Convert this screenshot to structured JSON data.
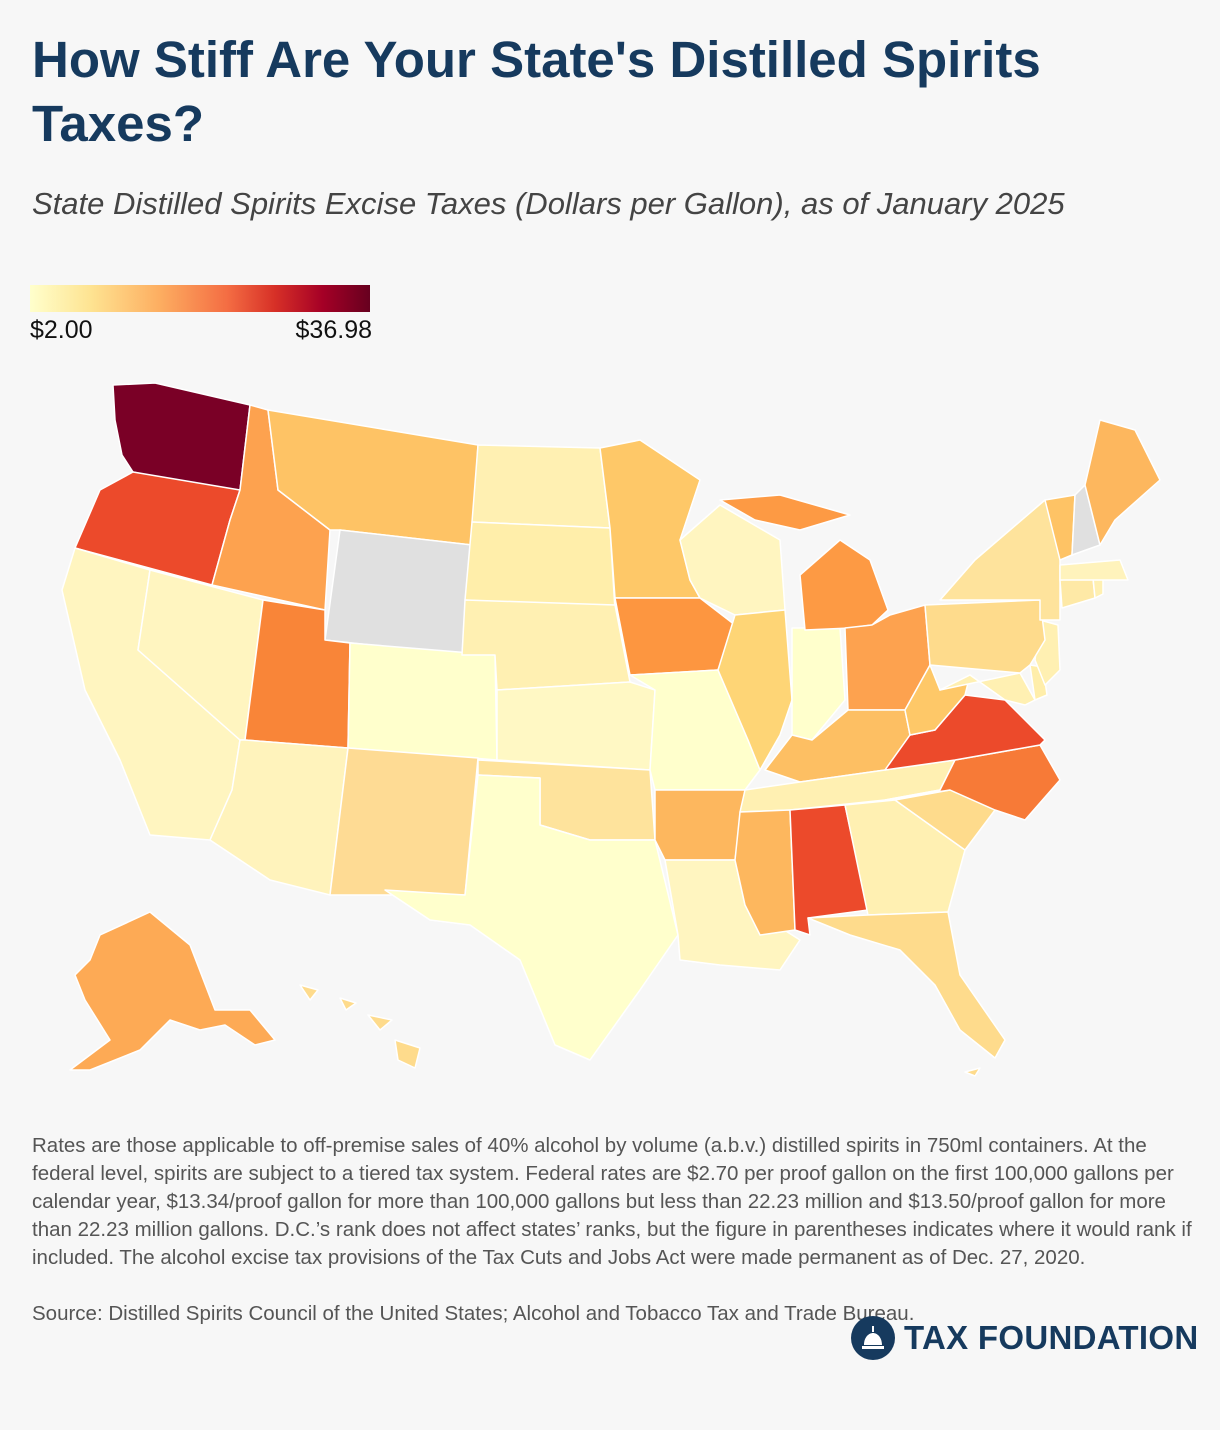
{
  "header": {
    "title": "How Stiff Are Your State's Distilled Spirits Taxes?",
    "subtitle": "State Distilled Spirits Excise Taxes (Dollars per Gallon), as of January 2025"
  },
  "legend": {
    "min_label": "$2.00",
    "max_label": "$36.98",
    "colors": [
      "#ffffcc",
      "#fee391",
      "#fdae61",
      "#f46d43",
      "#d73027",
      "#a50026",
      "#67001f"
    ],
    "no_data_color": "#e0e0e0"
  },
  "chart_data": {
    "type": "choropleth",
    "title": "How Stiff Are Your State's Distilled Spirits Taxes?",
    "subtitle": "State Distilled Spirits Excise Taxes (Dollars per Gallon), as of January 2025",
    "scale": {
      "min": 2.0,
      "max": 36.98,
      "min_label": "$2.00",
      "max_label": "$36.98"
    },
    "no_data_states": [
      "WY",
      "NH"
    ],
    "states": [
      {
        "id": "WA",
        "name": "Washington",
        "color": "#7a0026"
      },
      {
        "id": "OR",
        "name": "Oregon",
        "color": "#ec4a2b"
      },
      {
        "id": "CA",
        "name": "California",
        "color": "#fff5c0"
      },
      {
        "id": "NV",
        "name": "Nevada",
        "color": "#fff5c0"
      },
      {
        "id": "ID",
        "name": "Idaho",
        "color": "#fda24f"
      },
      {
        "id": "MT",
        "name": "Montana",
        "color": "#fec365"
      },
      {
        "id": "WY",
        "name": "Wyoming",
        "color": "#e0e0e0"
      },
      {
        "id": "UT",
        "name": "Utah",
        "color": "#f98538"
      },
      {
        "id": "AZ",
        "name": "Arizona",
        "color": "#fff3bc"
      },
      {
        "id": "CO",
        "name": "Colorado",
        "color": "#ffffcc"
      },
      {
        "id": "NM",
        "name": "New Mexico",
        "color": "#fedb94"
      },
      {
        "id": "ND",
        "name": "North Dakota",
        "color": "#fff0b2"
      },
      {
        "id": "SD",
        "name": "South Dakota",
        "color": "#ffeeaa"
      },
      {
        "id": "NE",
        "name": "Nebraska",
        "color": "#fff0b2"
      },
      {
        "id": "KS",
        "name": "Kansas",
        "color": "#fff8c4"
      },
      {
        "id": "OK",
        "name": "Oklahoma",
        "color": "#fee39c"
      },
      {
        "id": "TX",
        "name": "Texas",
        "color": "#ffffcc"
      },
      {
        "id": "MN",
        "name": "Minnesota",
        "color": "#fec868"
      },
      {
        "id": "IA",
        "name": "Iowa",
        "color": "#fd9640"
      },
      {
        "id": "MO",
        "name": "Missouri",
        "color": "#ffffcc"
      },
      {
        "id": "AR",
        "name": "Arkansas",
        "color": "#fdb75e"
      },
      {
        "id": "LA",
        "name": "Louisiana",
        "color": "#fff5c0"
      },
      {
        "id": "WI",
        "name": "Wisconsin",
        "color": "#fff5c0"
      },
      {
        "id": "IL",
        "name": "Illinois",
        "color": "#fed576"
      },
      {
        "id": "IN",
        "name": "Indiana",
        "color": "#ffffcc"
      },
      {
        "id": "MI",
        "name": "Michigan",
        "color": "#fd9a44"
      },
      {
        "id": "OH",
        "name": "Ohio",
        "color": "#fda24f"
      },
      {
        "id": "KY",
        "name": "Kentucky",
        "color": "#fdbf63"
      },
      {
        "id": "TN",
        "name": "Tennessee",
        "color": "#fff0b2"
      },
      {
        "id": "MS",
        "name": "Mississippi",
        "color": "#fdb75e"
      },
      {
        "id": "AL",
        "name": "Alabama",
        "color": "#ec4a2b"
      },
      {
        "id": "GA",
        "name": "Georgia",
        "color": "#fff0b2"
      },
      {
        "id": "FL",
        "name": "Florida",
        "color": "#fedb8c"
      },
      {
        "id": "SC",
        "name": "South Carolina",
        "color": "#fedb8c"
      },
      {
        "id": "NC",
        "name": "North Carolina",
        "color": "#f77a37"
      },
      {
        "id": "VA",
        "name": "Virginia",
        "color": "#ec4a2b"
      },
      {
        "id": "WV",
        "name": "West Virginia",
        "color": "#fec868"
      },
      {
        "id": "MD",
        "name": "Maryland",
        "color": "#fff0b2"
      },
      {
        "id": "DE",
        "name": "Delaware",
        "color": "#ffeeaa"
      },
      {
        "id": "NJ",
        "name": "New Jersey",
        "color": "#fff0b2"
      },
      {
        "id": "PA",
        "name": "Pennsylvania",
        "color": "#fedb8c"
      },
      {
        "id": "NY",
        "name": "New York",
        "color": "#fee39c"
      },
      {
        "id": "CT",
        "name": "Connecticut",
        "color": "#fee9a6"
      },
      {
        "id": "RI",
        "name": "Rhode Island",
        "color": "#fff0b2"
      },
      {
        "id": "MA",
        "name": "Massachusetts",
        "color": "#fff3bc"
      },
      {
        "id": "VT",
        "name": "Vermont",
        "color": "#fec365"
      },
      {
        "id": "NH",
        "name": "New Hampshire",
        "color": "#e0e0e0"
      },
      {
        "id": "ME",
        "name": "Maine",
        "color": "#fdb75e"
      },
      {
        "id": "AK",
        "name": "Alaska",
        "color": "#fdaa55"
      },
      {
        "id": "HI",
        "name": "Hawaii",
        "color": "#fedb8c"
      }
    ]
  },
  "footer": {
    "note": "Rates are those applicable to off-premise sales of 40% alcohol by volume (a.b.v.) distilled spirits in 750ml containers. At the federal level, spirits are subject to a tiered tax system. Federal rates are $2.70 per proof gallon on the first 100,000 gallons per calendar year, $13.34/proof gallon for more than 100,000 gallons but less than 22.23 million and $13.50/proof gallon for more than 22.23 million gallons. D.C.’s rank does not affect states’ ranks, but the figure in parentheses indicates where it would rank if included. The alcohol excise tax provisions of the Tax Cuts and Jobs Act were made permanent as of Dec. 27, 2020.",
    "source": "Source: Distilled Spirits Council of the United States; Alcohol and Tobacco Tax and Trade Bureau.",
    "logo_text": "TAX FOUNDATION"
  }
}
